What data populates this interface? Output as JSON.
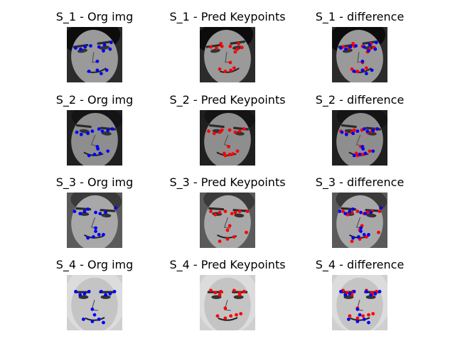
{
  "figure": {
    "rows": [
      {
        "titles": [
          "S_1 - Org img",
          "S_1 - Pred Keypoints",
          "S_1 - difference"
        ],
        "face": {
          "bg": "#2b2b2b",
          "skin": "#9a9a9a",
          "hair": "#0c0c0c",
          "tilt": -8,
          "hairStyle": "curly"
        },
        "gt": [
          [
            0.16,
            0.38
          ],
          [
            0.25,
            0.4
          ],
          [
            0.33,
            0.36
          ],
          [
            0.43,
            0.34
          ],
          [
            0.58,
            0.36
          ],
          [
            0.66,
            0.43
          ],
          [
            0.78,
            0.4
          ],
          [
            0.68,
            0.32
          ],
          [
            0.8,
            0.28
          ],
          [
            0.55,
            0.62
          ],
          [
            0.4,
            0.8
          ],
          [
            0.55,
            0.78
          ],
          [
            0.72,
            0.78
          ],
          [
            0.62,
            0.84
          ]
        ],
        "pred": [
          [
            0.2,
            0.36
          ],
          [
            0.3,
            0.38
          ],
          [
            0.4,
            0.35
          ],
          [
            0.38,
            0.3
          ],
          [
            0.55,
            0.35
          ],
          [
            0.68,
            0.4
          ],
          [
            0.76,
            0.37
          ],
          [
            0.7,
            0.3
          ],
          [
            0.64,
            0.45
          ],
          [
            0.55,
            0.64
          ],
          [
            0.36,
            0.76
          ],
          [
            0.46,
            0.8
          ],
          [
            0.56,
            0.78
          ],
          [
            0.62,
            0.74
          ]
        ]
      },
      {
        "titles": [
          "S_2 - Org img",
          "S_2 - Pred Keypoints",
          "S_2 - difference"
        ],
        "face": {
          "bg": "#1f1f1f",
          "skin": "#8e8e8e",
          "hair": "#141414",
          "tilt": 6,
          "hairStyle": "short"
        },
        "gt": [
          [
            0.18,
            0.4
          ],
          [
            0.26,
            0.44
          ],
          [
            0.38,
            0.42
          ],
          [
            0.46,
            0.38
          ],
          [
            0.58,
            0.34
          ],
          [
            0.64,
            0.38
          ],
          [
            0.74,
            0.37
          ],
          [
            0.82,
            0.34
          ],
          [
            0.55,
            0.66
          ],
          [
            0.4,
            0.82
          ],
          [
            0.5,
            0.8
          ],
          [
            0.6,
            0.78
          ],
          [
            0.74,
            0.74
          ],
          [
            0.56,
            0.7
          ]
        ],
        "pred": [
          [
            0.16,
            0.38
          ],
          [
            0.26,
            0.42
          ],
          [
            0.36,
            0.4
          ],
          [
            0.4,
            0.36
          ],
          [
            0.54,
            0.36
          ],
          [
            0.64,
            0.4
          ],
          [
            0.72,
            0.38
          ],
          [
            0.8,
            0.34
          ],
          [
            0.52,
            0.66
          ],
          [
            0.44,
            0.78
          ],
          [
            0.54,
            0.8
          ],
          [
            0.6,
            0.79
          ],
          [
            0.68,
            0.74
          ],
          [
            0.46,
            0.82
          ]
        ]
      },
      {
        "titles": [
          "S_3 - Org img",
          "S_3 - Pred Keypoints",
          "S_3 - difference"
        ],
        "face": {
          "bg": "#5a5a5a",
          "skin": "#a8a8a8",
          "hair": "#3a3a3a",
          "tilt": 4,
          "hairStyle": "short"
        },
        "gt": [
          [
            0.14,
            0.34
          ],
          [
            0.24,
            0.38
          ],
          [
            0.32,
            0.34
          ],
          [
            0.38,
            0.3
          ],
          [
            0.52,
            0.36
          ],
          [
            0.6,
            0.38
          ],
          [
            0.7,
            0.36
          ],
          [
            0.88,
            0.28
          ],
          [
            0.52,
            0.7
          ],
          [
            0.38,
            0.82
          ],
          [
            0.48,
            0.8
          ],
          [
            0.58,
            0.76
          ],
          [
            0.66,
            0.76
          ],
          [
            0.52,
            0.64
          ]
        ],
        "pred": [
          [
            0.2,
            0.34
          ],
          [
            0.28,
            0.4
          ],
          [
            0.36,
            0.36
          ],
          [
            0.46,
            0.34
          ],
          [
            0.58,
            0.38
          ],
          [
            0.64,
            0.36
          ],
          [
            0.72,
            0.34
          ],
          [
            0.86,
            0.34
          ],
          [
            0.5,
            0.68
          ],
          [
            0.36,
            0.88
          ],
          [
            0.5,
            0.84
          ],
          [
            0.62,
            0.8
          ],
          [
            0.84,
            0.72
          ],
          [
            0.54,
            0.6
          ]
        ]
      },
      {
        "titles": [
          "S_4 - Org img",
          "S_4 - Pred Keypoints",
          "S_4 - difference"
        ],
        "face": {
          "bg": "#cfcfcf",
          "skin": "#c4c4c4",
          "hair": "#dcdcdc",
          "tilt": 0,
          "hairStyle": "long"
        },
        "gt": [
          [
            0.16,
            0.3
          ],
          [
            0.24,
            0.36
          ],
          [
            0.32,
            0.34
          ],
          [
            0.4,
            0.3
          ],
          [
            0.62,
            0.3
          ],
          [
            0.7,
            0.36
          ],
          [
            0.78,
            0.34
          ],
          [
            0.86,
            0.3
          ],
          [
            0.46,
            0.62
          ],
          [
            0.3,
            0.8
          ],
          [
            0.46,
            0.84
          ],
          [
            0.58,
            0.8
          ],
          [
            0.66,
            0.86
          ],
          [
            0.5,
            0.72
          ]
        ],
        "pred": [
          [
            0.2,
            0.28
          ],
          [
            0.28,
            0.32
          ],
          [
            0.38,
            0.3
          ],
          [
            0.36,
            0.36
          ],
          [
            0.62,
            0.28
          ],
          [
            0.72,
            0.32
          ],
          [
            0.8,
            0.3
          ],
          [
            0.72,
            0.36
          ],
          [
            0.46,
            0.6
          ],
          [
            0.32,
            0.74
          ],
          [
            0.46,
            0.78
          ],
          [
            0.56,
            0.74
          ],
          [
            0.66,
            0.72
          ],
          [
            0.74,
            0.7
          ]
        ]
      }
    ],
    "colors": {
      "gt": "#0000ff",
      "pred": "#ff0000"
    }
  }
}
